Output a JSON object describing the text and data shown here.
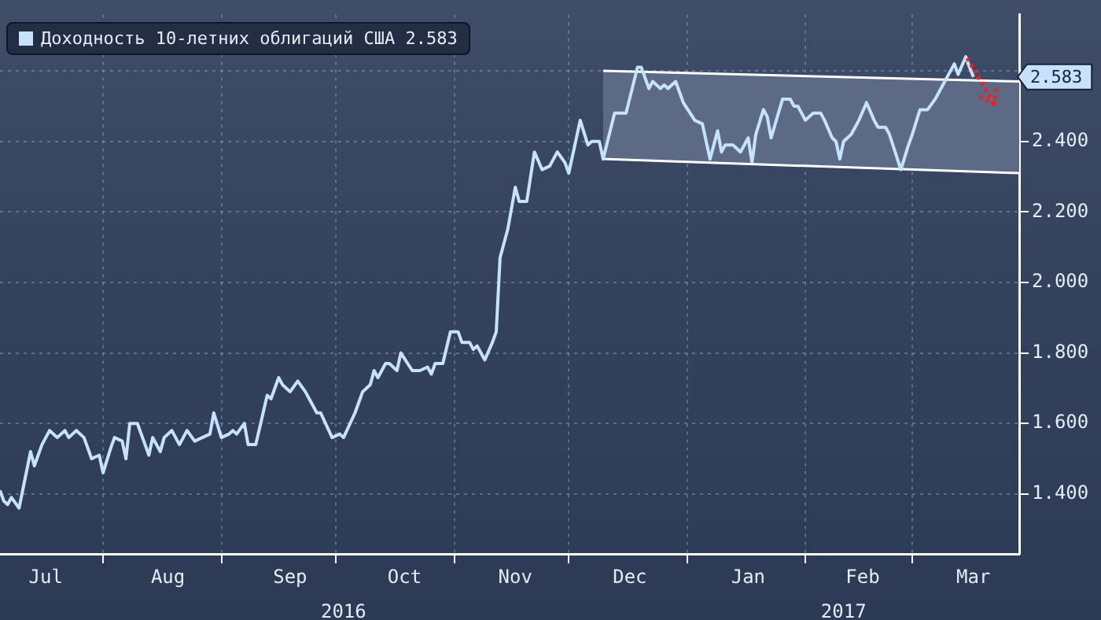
{
  "chart_data": {
    "type": "line",
    "legend": "top left",
    "grid": true,
    "xlim": [
      "2016-07-05",
      "2017-03-29"
    ],
    "ylim": [
      1.23,
      2.76
    ],
    "xticks": [
      {
        "value": "2016-07-17",
        "label": "Jul"
      },
      {
        "value": "2016-08-01",
        "label": null
      },
      {
        "value": "2016-08-18",
        "label": "Aug"
      },
      {
        "value": "2016-09-01",
        "label": null
      },
      {
        "value": "2016-09-19",
        "label": "Sep"
      },
      {
        "value": "2016-10-01",
        "label": null
      },
      {
        "value": "2016-10-19",
        "label": "Oct"
      },
      {
        "value": "2016-11-01",
        "label": null
      },
      {
        "value": "2016-11-17",
        "label": "Nov"
      },
      {
        "value": "2016-12-01",
        "label": null
      },
      {
        "value": "2016-12-17",
        "label": "Dec"
      },
      {
        "value": "2017-01-01",
        "label": null
      },
      {
        "value": "2017-01-17",
        "label": "Jan"
      },
      {
        "value": "2017-02-01",
        "label": null
      },
      {
        "value": "2017-02-16",
        "label": "Feb"
      },
      {
        "value": "2017-03-01",
        "label": null
      },
      {
        "value": "2017-03-17",
        "label": "Mar"
      }
    ],
    "x2lim": [
      "2016-07-05",
      "2017-03-29"
    ],
    "x2ticks": [
      {
        "value": "2016-10-03",
        "label": "2016"
      },
      {
        "value": "2017-02-11",
        "label": "2017"
      }
    ],
    "yticks": [
      {
        "value": 1.4,
        "label": "1.400"
      },
      {
        "value": 1.6,
        "label": "1.600"
      },
      {
        "value": 1.8,
        "label": "1.800"
      },
      {
        "value": 2.0,
        "label": "2.000"
      },
      {
        "value": 2.2,
        "label": "2.200"
      },
      {
        "value": 2.4,
        "label": "2.400"
      },
      {
        "value": 2.6,
        "label": null
      }
    ],
    "annotations": [
      "2.583"
    ],
    "series": [
      {
        "name": "Доходность 10-летних облигаций США 2.583",
        "color": "#c6e2ff",
        "x": [
          "2016-07-05",
          "2016-07-06",
          "2016-07-07",
          "2016-07-08",
          "2016-07-10",
          "2016-07-13",
          "2016-07-14",
          "2016-07-16",
          "2016-07-18",
          "2016-07-20",
          "2016-07-22",
          "2016-07-23",
          "2016-07-25",
          "2016-07-27",
          "2016-07-29",
          "2016-07-31",
          "2016-08-01",
          "2016-08-03",
          "2016-08-04",
          "2016-08-06",
          "2016-08-07",
          "2016-08-08",
          "2016-08-10",
          "2016-08-12",
          "2016-08-13",
          "2016-08-14",
          "2016-08-16",
          "2016-08-17",
          "2016-08-19",
          "2016-08-21",
          "2016-08-23",
          "2016-08-25",
          "2016-08-27",
          "2016-08-29",
          "2016-08-30",
          "2016-09-01",
          "2016-09-03",
          "2016-09-04",
          "2016-09-05",
          "2016-09-07",
          "2016-09-08",
          "2016-09-10",
          "2016-09-13",
          "2016-09-14",
          "2016-09-16",
          "2016-09-17",
          "2016-09-19",
          "2016-09-21",
          "2016-09-23",
          "2016-09-26",
          "2016-09-27",
          "2016-09-30",
          "2016-10-02",
          "2016-10-03",
          "2016-10-06",
          "2016-10-08",
          "2016-10-10",
          "2016-10-11",
          "2016-10-12",
          "2016-10-14",
          "2016-10-15",
          "2016-10-17",
          "2016-10-18",
          "2016-10-21",
          "2016-10-23",
          "2016-10-25",
          "2016-10-26",
          "2016-10-27",
          "2016-10-29",
          "2016-10-31",
          "2016-11-02",
          "2016-11-03",
          "2016-11-05",
          "2016-11-06",
          "2016-11-07",
          "2016-11-09",
          "2016-11-11",
          "2016-11-12",
          "2016-11-13",
          "2016-11-15",
          "2016-11-17",
          "2016-11-18",
          "2016-11-20",
          "2016-11-22",
          "2016-11-24",
          "2016-11-26",
          "2016-11-28",
          "2016-11-30",
          "2016-12-01",
          "2016-12-04",
          "2016-12-06",
          "2016-12-07",
          "2016-12-09",
          "2016-12-10",
          "2016-12-13",
          "2016-12-16",
          "2016-12-19",
          "2016-12-20",
          "2016-12-22",
          "2016-12-23",
          "2016-12-25",
          "2016-12-26",
          "2016-12-27",
          "2016-12-29",
          "2016-12-31",
          "2017-01-03",
          "2017-01-05",
          "2017-01-07",
          "2017-01-09",
          "2017-01-10",
          "2017-01-11",
          "2017-01-13",
          "2017-01-15",
          "2017-01-17",
          "2017-01-18",
          "2017-01-19",
          "2017-01-21",
          "2017-01-22",
          "2017-01-23",
          "2017-01-26",
          "2017-01-28",
          "2017-01-29",
          "2017-01-30",
          "2017-02-01",
          "2017-02-03",
          "2017-02-05",
          "2017-02-06",
          "2017-02-08",
          "2017-02-09",
          "2017-02-10",
          "2017-02-11",
          "2017-02-13",
          "2017-02-15",
          "2017-02-17",
          "2017-02-19",
          "2017-02-20",
          "2017-02-22",
          "2017-02-23",
          "2017-02-26",
          "2017-02-28",
          "2017-03-01",
          "2017-03-03",
          "2017-03-05",
          "2017-03-07",
          "2017-03-09",
          "2017-03-12",
          "2017-03-13",
          "2017-03-15",
          "2017-03-16",
          "2017-03-17"
        ],
        "values": [
          1.41,
          1.38,
          1.37,
          1.39,
          1.36,
          1.52,
          1.48,
          1.54,
          1.58,
          1.56,
          1.58,
          1.56,
          1.58,
          1.56,
          1.5,
          1.51,
          1.46,
          1.53,
          1.56,
          1.55,
          1.5,
          1.6,
          1.6,
          1.54,
          1.51,
          1.56,
          1.52,
          1.56,
          1.58,
          1.54,
          1.58,
          1.55,
          1.56,
          1.57,
          1.63,
          1.56,
          1.57,
          1.58,
          1.57,
          1.6,
          1.54,
          1.54,
          1.68,
          1.67,
          1.73,
          1.71,
          1.69,
          1.72,
          1.69,
          1.63,
          1.63,
          1.56,
          1.57,
          1.56,
          1.63,
          1.69,
          1.71,
          1.75,
          1.73,
          1.77,
          1.77,
          1.75,
          1.8,
          1.75,
          1.75,
          1.76,
          1.74,
          1.77,
          1.77,
          1.86,
          1.86,
          1.83,
          1.83,
          1.81,
          1.82,
          1.78,
          1.83,
          1.86,
          2.07,
          2.15,
          2.27,
          2.23,
          2.23,
          2.37,
          2.32,
          2.33,
          2.37,
          2.34,
          2.31,
          2.46,
          2.39,
          2.4,
          2.4,
          2.35,
          2.48,
          2.48,
          2.61,
          2.61,
          2.55,
          2.57,
          2.55,
          2.56,
          2.55,
          2.57,
          2.51,
          2.46,
          2.45,
          2.35,
          2.43,
          2.37,
          2.39,
          2.39,
          2.37,
          2.41,
          2.34,
          2.42,
          2.49,
          2.47,
          2.41,
          2.52,
          2.52,
          2.5,
          2.5,
          2.46,
          2.48,
          2.48,
          2.46,
          2.41,
          2.4,
          2.35,
          2.4,
          2.42,
          2.46,
          2.51,
          2.46,
          2.44,
          2.44,
          2.42,
          2.32,
          2.39,
          2.42,
          2.49,
          2.49,
          2.52,
          2.56,
          2.62,
          2.59,
          2.64,
          2.61,
          2.583
        ]
      },
      {
        "type": "line",
        "color": "#ffffff",
        "x": [
          "2016-12-10",
          "2017-03-29"
        ],
        "values": [
          2.6,
          2.57
        ]
      },
      {
        "type": "line",
        "color": "#ffffff",
        "x": [
          "2016-12-10",
          "2017-03-29"
        ],
        "values": [
          2.35,
          2.31
        ]
      },
      {
        "type": "line",
        "color": "#5c6a86",
        "x": [
          "2016-12-10",
          "2017-03-29"
        ],
        "values": [
          null,
          null
        ],
        "lower": [
          2.35,
          2.31
        ],
        "upper": [
          2.6,
          2.57
        ]
      }
    ]
  }
}
